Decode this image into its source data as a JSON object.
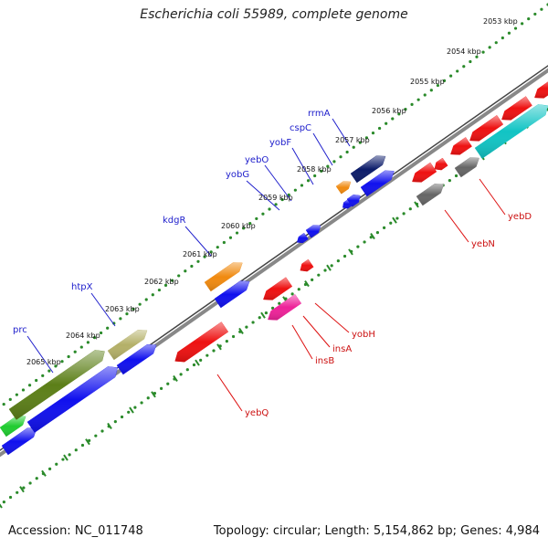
{
  "title": "Escherichia coli 55989, complete genome",
  "footer": {
    "accession": "Accession: NC_011748",
    "stats": "Topology: circular; Length: 5,154,862 bp; Genes: 4,984"
  },
  "scale_labels": [
    "2053 kbp",
    "2054 kbp",
    "2055 kbp",
    "2056 kbp",
    "2057 kbp",
    "2058 kbp",
    "2059 kbp",
    "2060 kbp",
    "2061 kbp",
    "2062 kbp",
    "2063 kbp",
    "2064 kbp",
    "2065 kbp"
  ],
  "gene_labels_forward": [
    "rrmA",
    "cspC",
    "yobF",
    "yebO",
    "yobG",
    "kdgR",
    "htpX",
    "prc"
  ],
  "gene_labels_reverse": [
    "yebD",
    "yebN",
    "yobH",
    "insA",
    "insB",
    "yebQ"
  ],
  "colors": {
    "blue": "#1010ee",
    "red": "#ee1111",
    "cyan": "#11c4c4",
    "gray": "#666666",
    "orange": "#f08a10",
    "magenta": "#ee2299",
    "olive": "#5c7f18",
    "khaki": "#b4b068",
    "navy": "#0c1c6a",
    "green": "#20cc30",
    "dots": "#2a8a2a",
    "backbone": "#888888"
  }
}
